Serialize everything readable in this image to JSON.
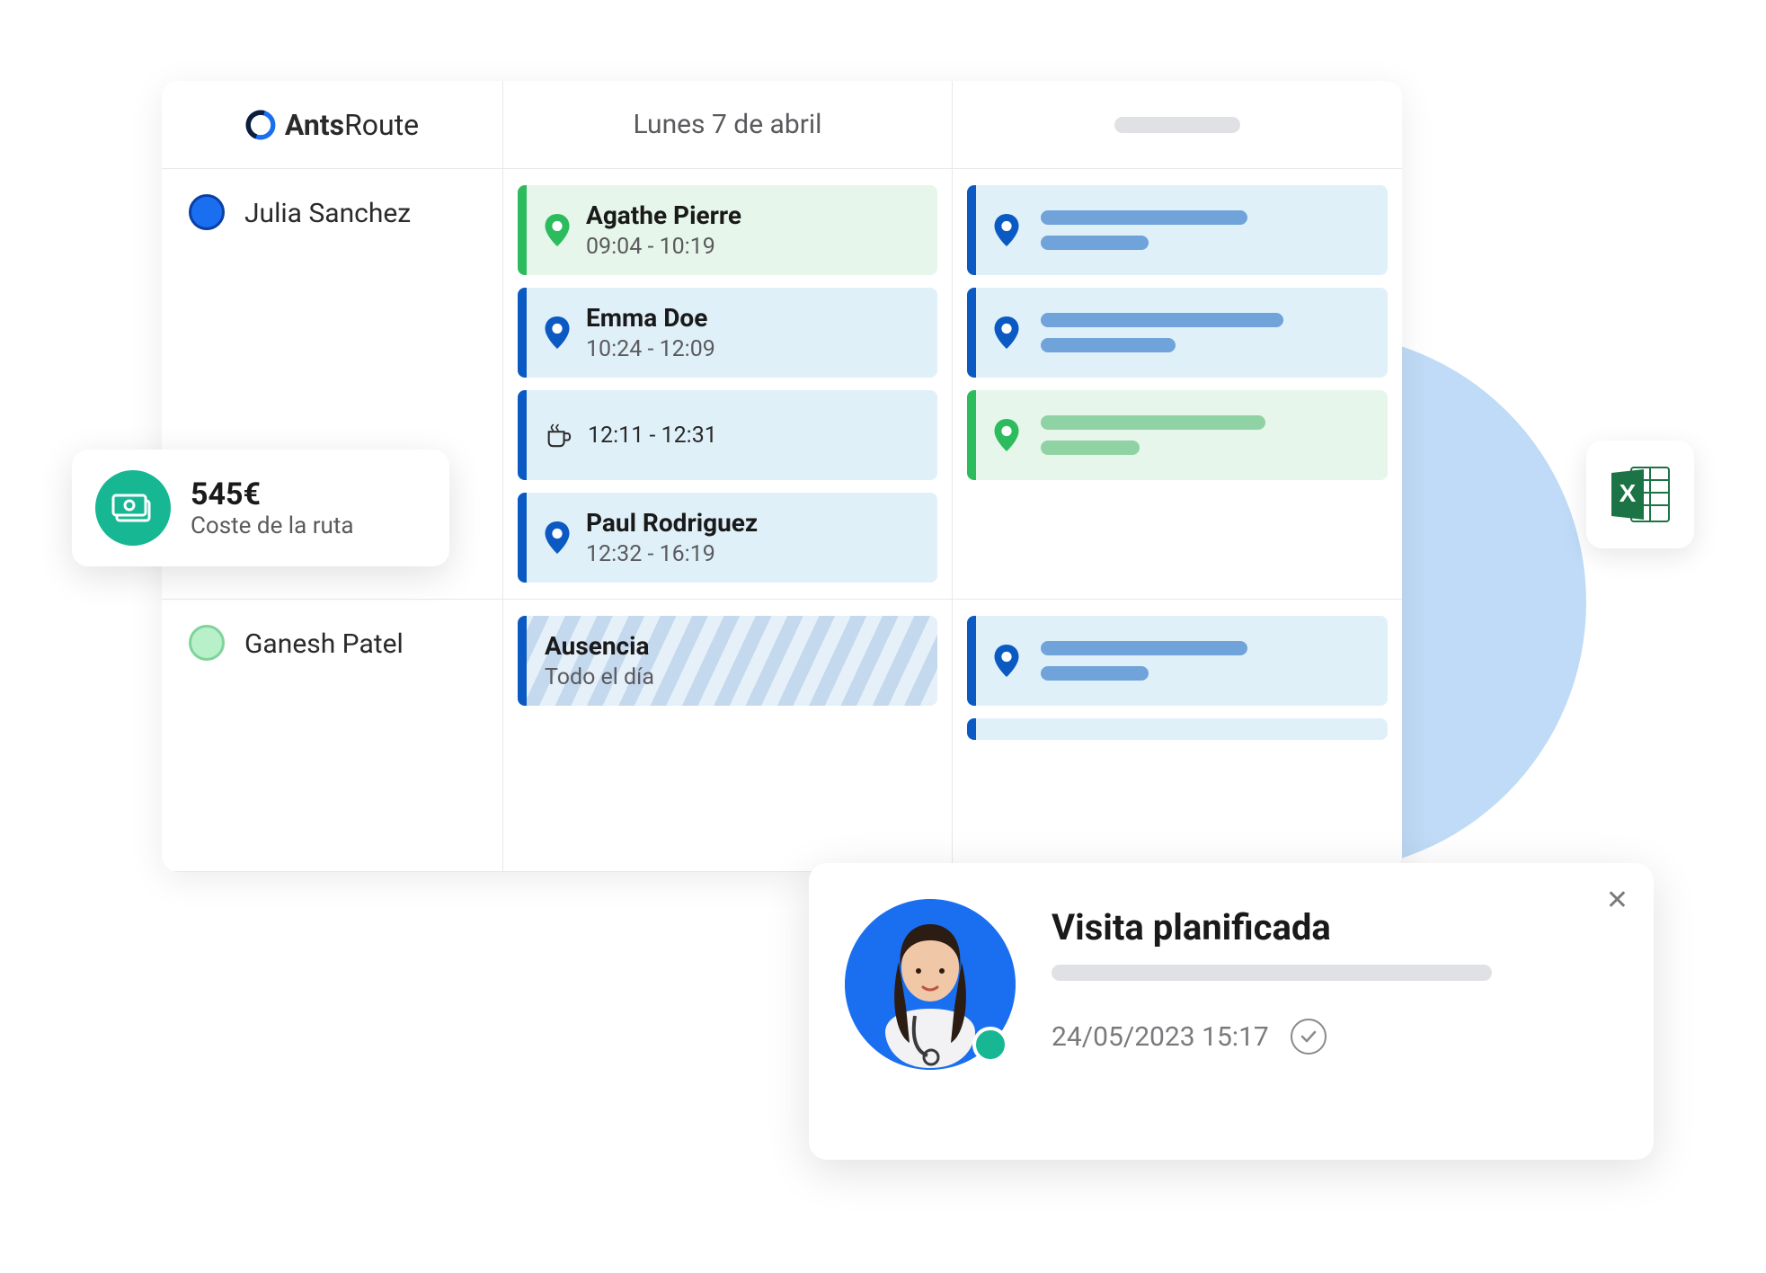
{
  "app": {
    "name_bold": "Ants",
    "name_rest": "Route"
  },
  "header": {
    "date": "Lunes 7 de abril"
  },
  "agents": [
    {
      "name": "Julia Sanchez",
      "dot_fill": "#1a6ff1",
      "dot_border": "#0b3fa3"
    },
    {
      "name": "Ganesh Patel",
      "dot_fill": "#b8f0c9",
      "dot_border": "#7fd49a"
    }
  ],
  "col1": {
    "julia": [
      {
        "type": "visit",
        "variant": "green",
        "name": "Agathe Pierre",
        "time": "09:04 - 10:19"
      },
      {
        "type": "visit",
        "variant": "blue",
        "name": "Emma Doe",
        "time": "10:24 - 12:09"
      },
      {
        "type": "break",
        "variant": "blue",
        "time": "12:11 - 12:31"
      },
      {
        "type": "visit",
        "variant": "blue",
        "name": "Paul Rodriguez",
        "time": "12:32 - 16:19"
      }
    ],
    "ganesh": {
      "title": "Ausencia",
      "sub": "Todo el día"
    }
  },
  "col2": {
    "julia": [
      {
        "variant": "blue",
        "w1": 230,
        "w2": 120,
        "color": "#6fa3d9"
      },
      {
        "variant": "blue",
        "w1": 270,
        "w2": 150,
        "color": "#6fa3d9"
      },
      {
        "variant": "green",
        "w1": 250,
        "w2": 110,
        "color": "#8fd2a3"
      }
    ],
    "ganesh": [
      {
        "variant": "blue",
        "w1": 230,
        "w2": 120,
        "color": "#6fa3d9"
      }
    ]
  },
  "cost": {
    "amount": "545€",
    "label": "Coste de la ruta",
    "bg": "#17b794"
  },
  "excel": {
    "color": "#1c7346"
  },
  "visit": {
    "title": "Visita planificada",
    "datetime": "24/05/2023 15:17"
  },
  "colors": {
    "blue_bar": "#0b59c2",
    "green_bar": "#2cbb5d",
    "blue_bg": "#e0f0f9",
    "green_bg": "#e6f6ea"
  }
}
